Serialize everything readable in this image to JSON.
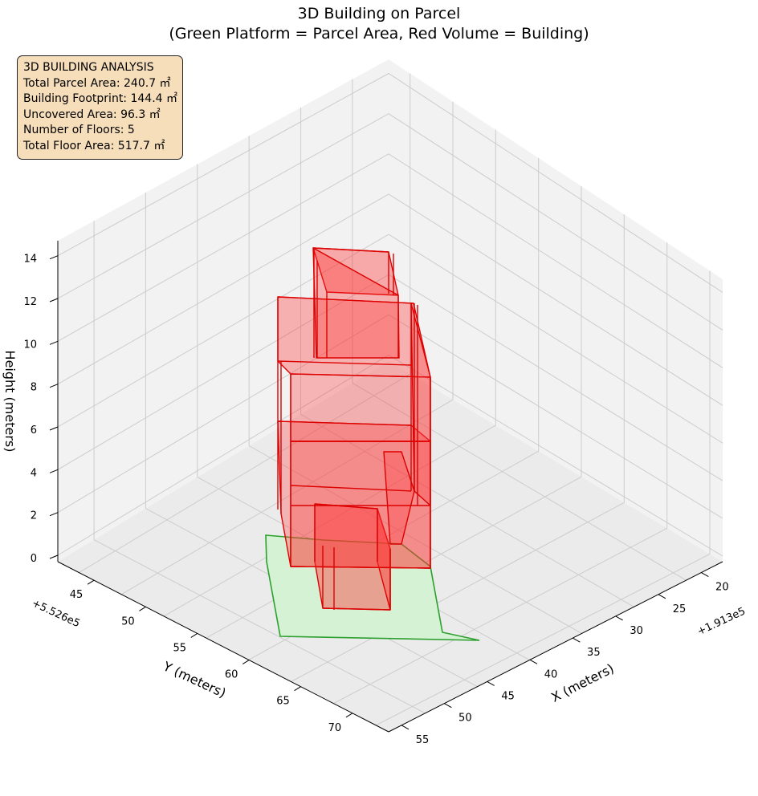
{
  "chart_data": {
    "type": "3d-polygon",
    "title_line1": "3D Building on Parcel",
    "title_line2": "(Green Platform = Parcel Area, Red Volume = Building)",
    "xlabel": "X (meters)",
    "ylabel": "Y (meters)",
    "zlabel": "Height (meters)",
    "x_offset_label": "+1.913e5",
    "y_offset_label": "+5.526e5",
    "x_ticks": [
      20,
      25,
      30,
      35,
      40,
      45,
      50,
      55
    ],
    "y_ticks": [
      45,
      50,
      55,
      60,
      65,
      70
    ],
    "z_ticks": [
      0,
      2,
      4,
      6,
      8,
      10,
      12,
      14
    ],
    "grid": true,
    "colors": {
      "parcel_fill": "#d4f2d4",
      "parcel_edge": "#2ca02c",
      "building_fill": "#ff3333",
      "building_edge": "#dd0000",
      "box_fill": "#f6deba",
      "pane_light": "#f2f2f2",
      "pane_mid": "#ebebeb",
      "grid": "#cccccc"
    },
    "info_box": {
      "lines": [
        "3D BUILDING ANALYSIS",
        "Total Parcel Area: 240.7 ㎡",
        "Building Footprint: 144.4 ㎡",
        "Uncovered Area: 96.3 ㎡",
        "Number of Floors: 5",
        "Total Floor Area: 517.7 ㎡"
      ],
      "placement": "top-left"
    },
    "floors": 5
  }
}
